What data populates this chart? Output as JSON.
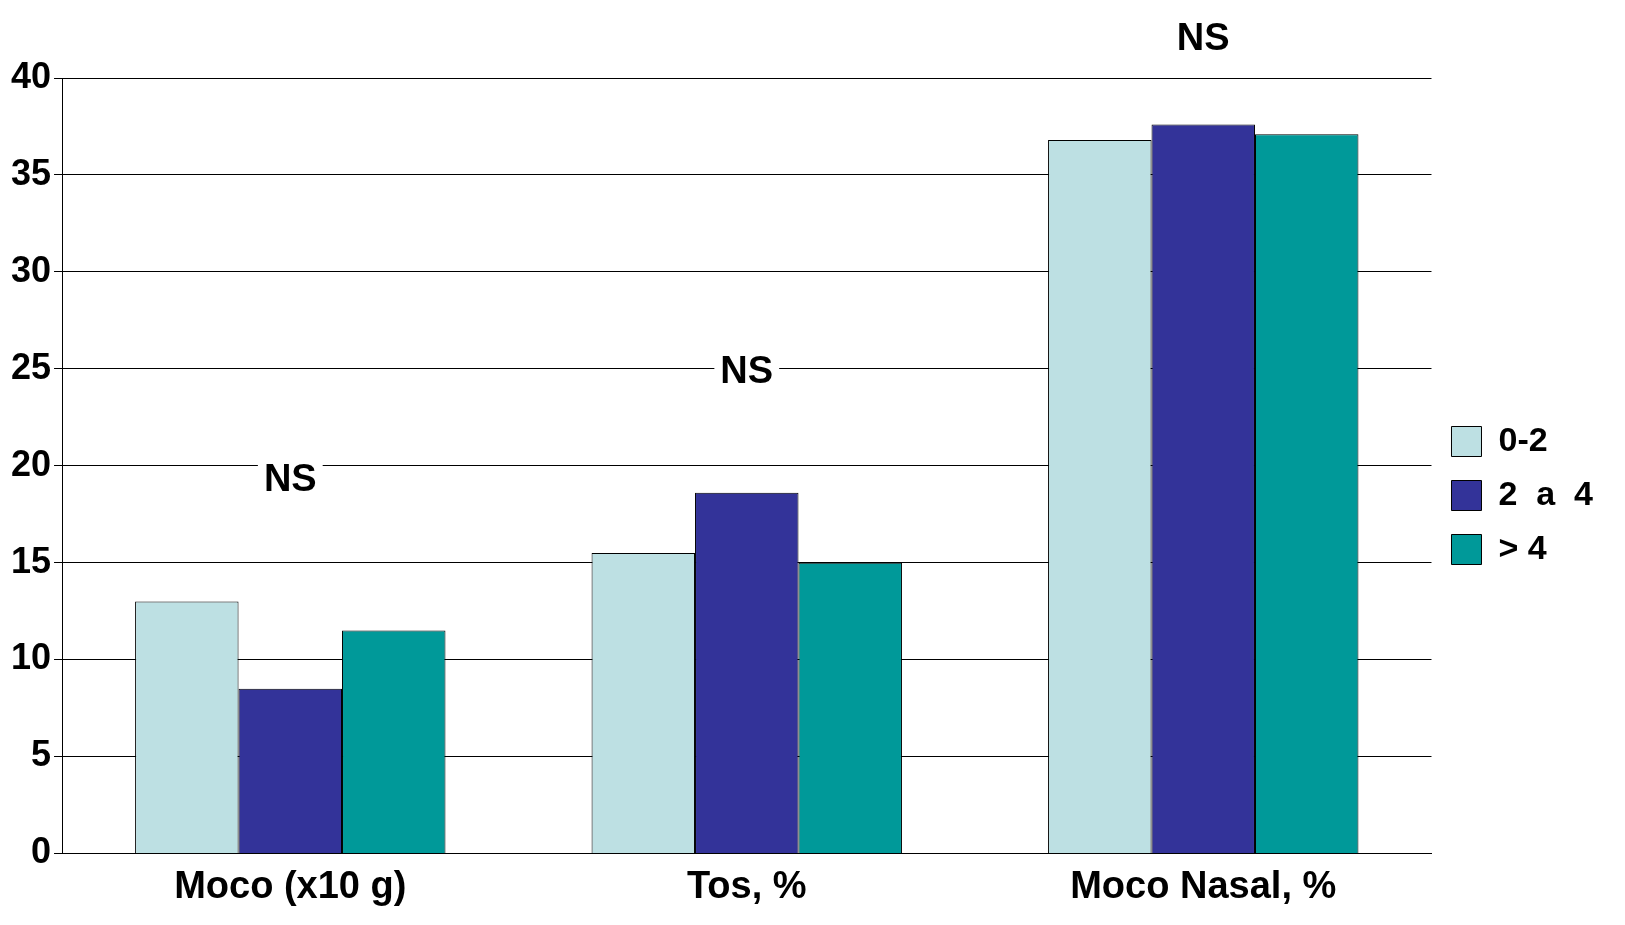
{
  "chart_data": {
    "type": "bar",
    "categories": [
      "Moco (x10 g)",
      "Tos, %",
      "Moco Nasal, %"
    ],
    "series": [
      {
        "name": "0-2",
        "color": "#bde0e3",
        "values": [
          13,
          15.5,
          36.8
        ]
      },
      {
        "name": "2  a  4",
        "color": "#333399",
        "values": [
          8.5,
          18.6,
          37.6
        ]
      },
      {
        "name": "> 4",
        "color": "#009999",
        "values": [
          11.5,
          15,
          37.1
        ]
      }
    ],
    "ylim": [
      0,
      40
    ],
    "yticks": [
      0,
      5,
      10,
      15,
      20,
      25,
      30,
      35,
      40
    ],
    "grid": "y",
    "legend": "right",
    "annotations": [
      "NS",
      "NS",
      "NS"
    ]
  }
}
